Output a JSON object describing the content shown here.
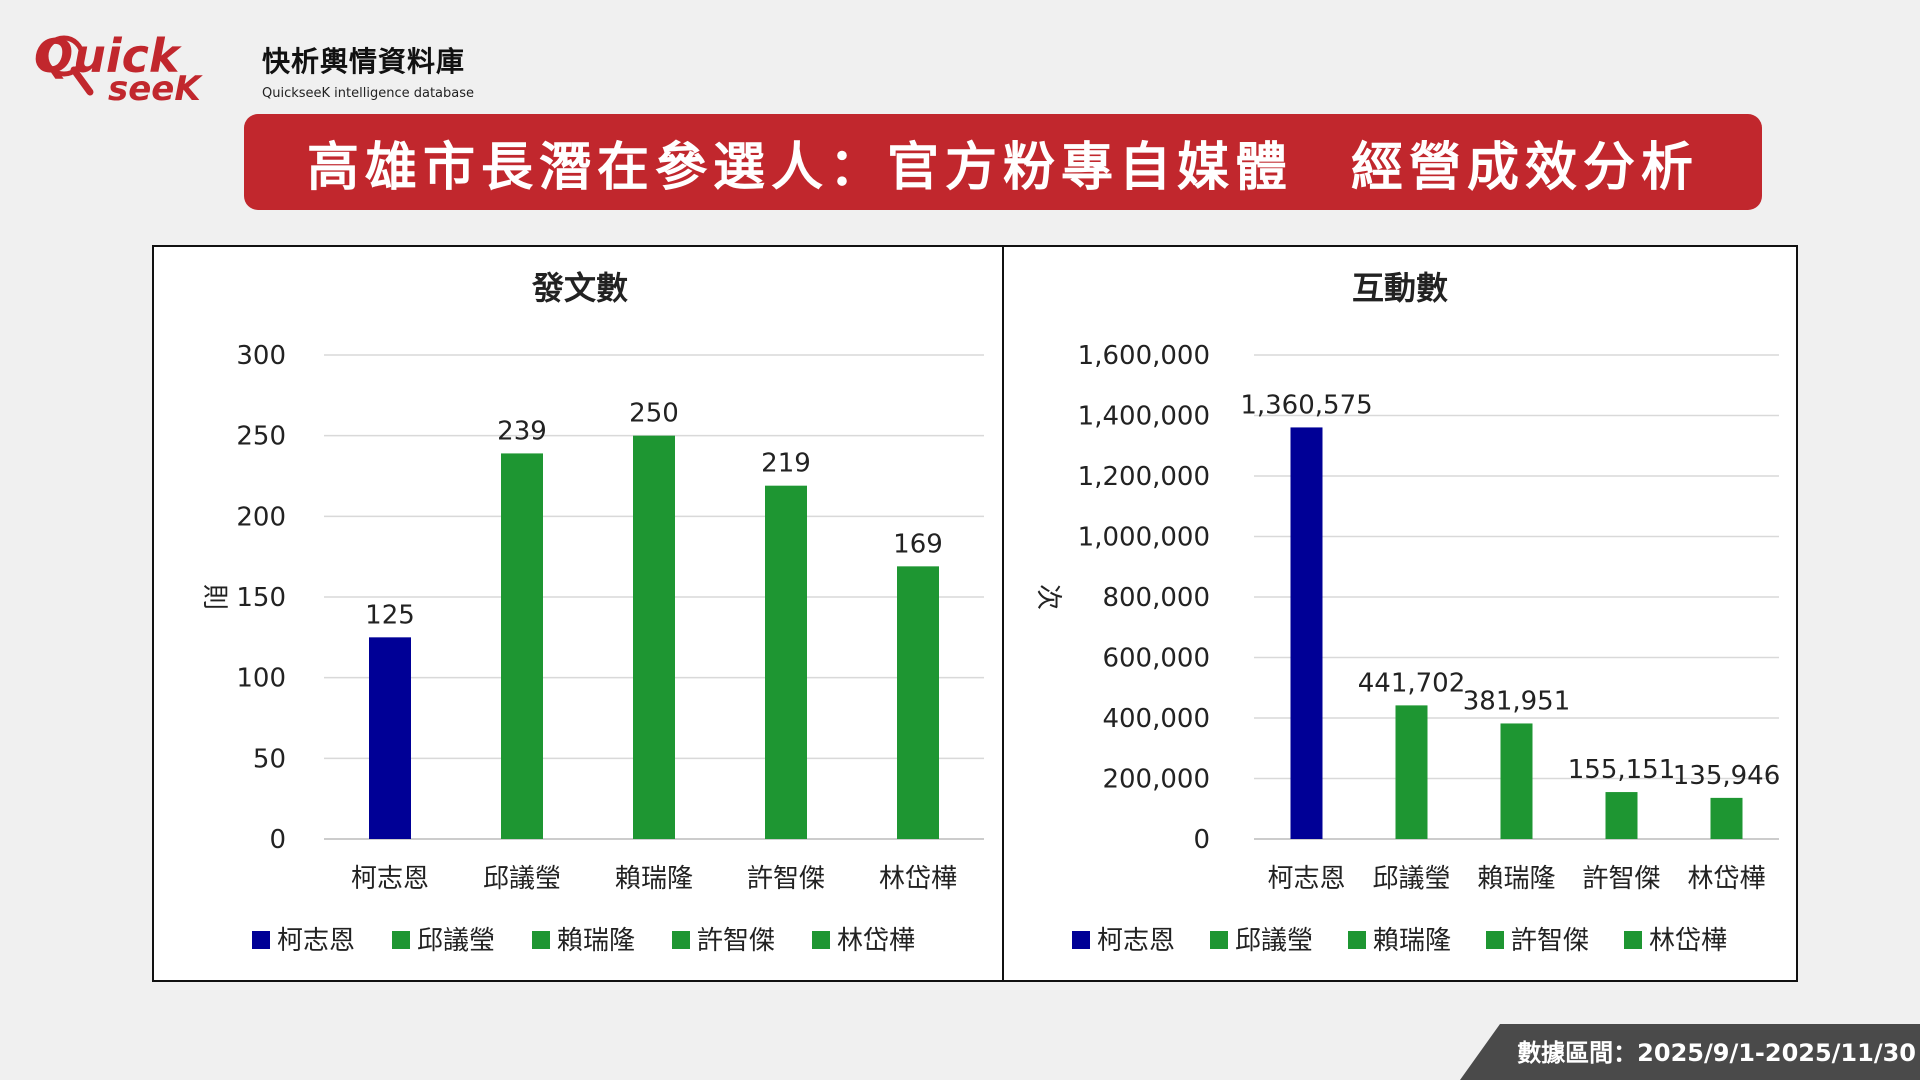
{
  "brand": {
    "logo_text": "QuickseeK",
    "name": "快析輿情資料庫",
    "subtitle": "QuickseeK intelligence database"
  },
  "title": "高雄市長潛在參選人：官方粉專自媒體　經營成效分析",
  "footer": {
    "date_range": "數據區間：2025/9/1-2025/11/30"
  },
  "colors": {
    "brand_red": "#c1272d",
    "highlight_bar": "#000096",
    "default_bar": "#1e9632"
  },
  "chart_data": [
    {
      "type": "bar",
      "title": "發文數",
      "ylabel": "則",
      "xlabel": "",
      "categories": [
        "柯志恩",
        "邱議瑩",
        "賴瑞隆",
        "許智傑",
        "林岱樺"
      ],
      "values": [
        125,
        239,
        250,
        219,
        169
      ],
      "value_labels": [
        "125",
        "239",
        "250",
        "219",
        "169"
      ],
      "ylim": [
        0,
        300
      ],
      "yticks": [
        0,
        50,
        100,
        150,
        200,
        250,
        300
      ],
      "ytick_labels": [
        "0",
        "50",
        "100",
        "150",
        "200",
        "250",
        "300"
      ],
      "bar_colors": [
        "#000096",
        "#1e9632",
        "#1e9632",
        "#1e9632",
        "#1e9632"
      ],
      "legend": [
        "柯志恩",
        "邱議瑩",
        "賴瑞隆",
        "許智傑",
        "林岱樺"
      ],
      "legend_position": "bottom",
      "grid": true
    },
    {
      "type": "bar",
      "title": "互動數",
      "ylabel": "次",
      "xlabel": "",
      "categories": [
        "柯志恩",
        "邱議瑩",
        "賴瑞隆",
        "許智傑",
        "林岱樺"
      ],
      "values": [
        1360575,
        441702,
        381951,
        155151,
        135946
      ],
      "value_labels": [
        "1,360,575",
        "441,702",
        "381,951",
        "155,151",
        "135,946"
      ],
      "ylim": [
        0,
        1600000
      ],
      "yticks": [
        0,
        200000,
        400000,
        600000,
        800000,
        1000000,
        1200000,
        1400000,
        1600000
      ],
      "ytick_labels": [
        "0",
        "200,000",
        "400,000",
        "600,000",
        "800,000",
        "1,000,000",
        "1,200,000",
        "1,400,000",
        "1,600,000"
      ],
      "bar_colors": [
        "#000096",
        "#1e9632",
        "#1e9632",
        "#1e9632",
        "#1e9632"
      ],
      "legend": [
        "柯志恩",
        "邱議瑩",
        "賴瑞隆",
        "許智傑",
        "林岱樺"
      ],
      "legend_position": "bottom",
      "grid": true
    }
  ]
}
